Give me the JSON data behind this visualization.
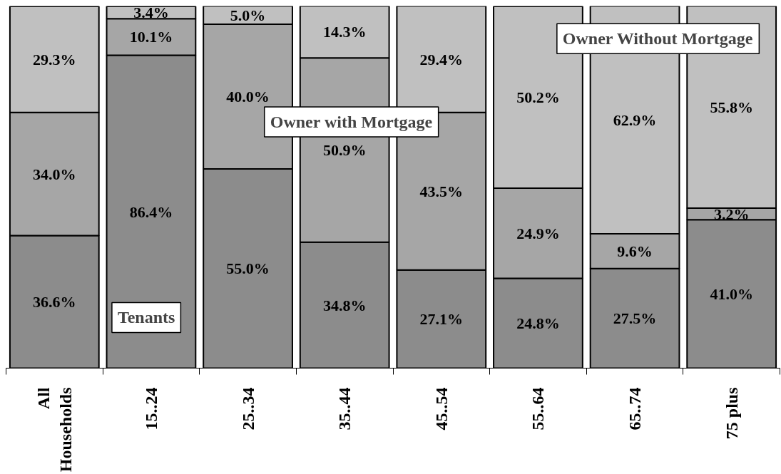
{
  "chart_data": {
    "type": "bar",
    "stacked": true,
    "tick_labels": "x",
    "ylim": [
      0,
      100
    ],
    "categories": [
      "All Households",
      "15..24",
      "25..34",
      "35..44",
      "45..54",
      "55..64",
      "65..74",
      "75 plus"
    ],
    "series": [
      {
        "name": "Tenants",
        "color": "#8c8c8c",
        "values": [
          36.6,
          86.4,
          55.0,
          34.8,
          27.1,
          24.8,
          27.5,
          41.0
        ],
        "value_labels": [
          "36.6%",
          "86.4%",
          "55.0%",
          "34.8%",
          "27.1%",
          "24.8%",
          "27.5%",
          "41.0%"
        ]
      },
      {
        "name": "Owner with Mortgage",
        "color": "#a6a6a6",
        "values": [
          34.0,
          10.1,
          40.0,
          50.9,
          43.5,
          24.9,
          9.6,
          3.2
        ],
        "value_labels": [
          "34.0%",
          "10.1%",
          "40.0%",
          "50.9%",
          "43.5%",
          "24.9%",
          "9.6%",
          "3.2%"
        ]
      },
      {
        "name": "Owner Without Mortgage",
        "color": "#c0c0c0",
        "values": [
          29.3,
          3.4,
          5.0,
          14.3,
          29.4,
          50.2,
          62.9,
          55.8
        ],
        "value_labels": [
          "29.3%",
          "3.4%",
          "5.0%",
          "14.3%",
          "29.4%",
          "50.2%",
          "62.9%",
          "55.8%"
        ]
      }
    ]
  }
}
